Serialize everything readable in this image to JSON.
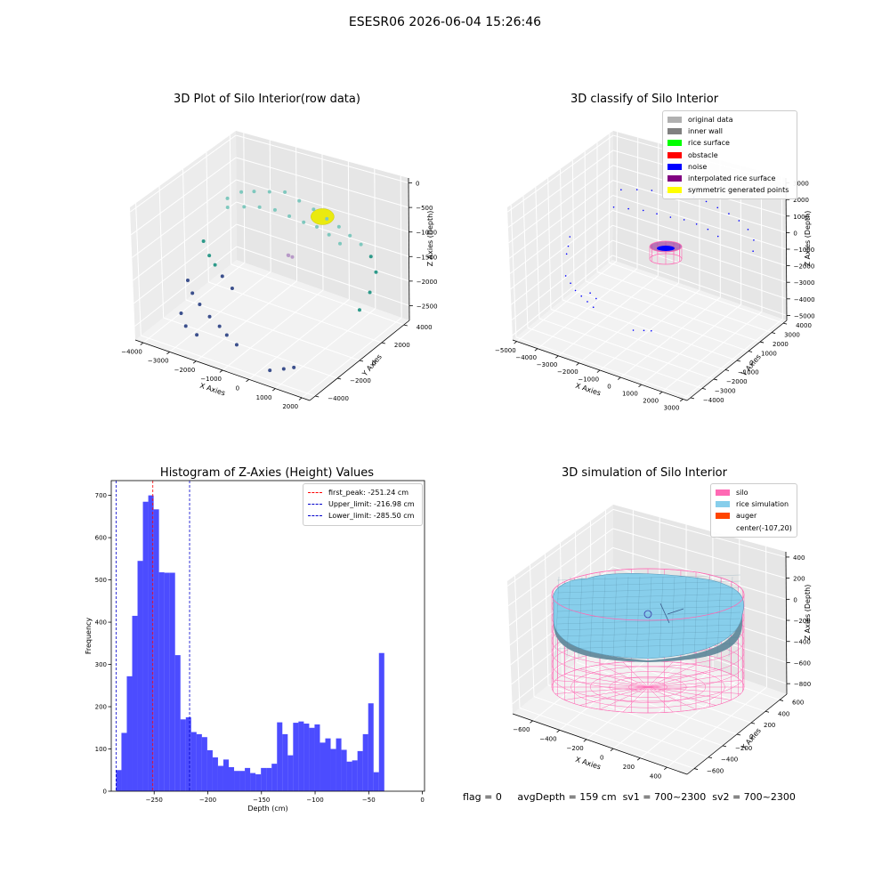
{
  "suptitle": "ESESR06 2026-06-04 15:26:46",
  "status": {
    "flag": "flag = 0",
    "avg": "avgDepth = 159 cm",
    "sv1": "sv1 = 700~2300",
    "sv2": "sv2 = 700~2300"
  },
  "chart_data": [
    {
      "type": "scatter",
      "title": "3D Plot of Silo Interior(row data)",
      "xlabel": "X Axies",
      "ylabel": "Y Axies",
      "zlabel": "Z Axies (Depth)",
      "x_ticks": [
        -4000,
        -3000,
        -2000,
        -1000,
        0,
        1000,
        2000
      ],
      "y_ticks": [
        -4000,
        -2000,
        0,
        2000,
        4000
      ],
      "z_ticks": [
        -2500,
        -2000,
        -1500,
        -1000,
        -500,
        0
      ],
      "xlim": [
        -4300,
        2300
      ],
      "ylim": [
        -4500,
        4500
      ],
      "zlim": [
        -2800,
        100
      ],
      "grid": true,
      "colors": {
        "high": "#7fc8be",
        "mid": "#2e9a8a",
        "low": "#3b4f8c",
        "feature": "#eaea10",
        "accent": "#b89ac8"
      },
      "points": [
        [
          -3600,
          2200,
          -1000
        ],
        [
          -3200,
          2500,
          -850
        ],
        [
          -2800,
          2700,
          -800
        ],
        [
          -2300,
          2900,
          -750
        ],
        [
          -1800,
          3100,
          -700
        ],
        [
          -1300,
          3200,
          -800
        ],
        [
          -800,
          3300,
          -900
        ],
        [
          -300,
          3300,
          -1000
        ],
        [
          200,
          3200,
          -1050
        ],
        [
          700,
          3000,
          -1100
        ],
        [
          1200,
          2800,
          -1150
        ],
        [
          1700,
          2500,
          -1250
        ],
        [
          2100,
          2000,
          -1400
        ],
        [
          2200,
          1200,
          -1650
        ],
        [
          2100,
          500,
          -1900
        ],
        [
          -3300,
          1500,
          -1000
        ],
        [
          -2800,
          1800,
          -950
        ],
        [
          -2300,
          2000,
          -900
        ],
        [
          -1800,
          2200,
          -900
        ],
        [
          -1300,
          2300,
          -950
        ],
        [
          -800,
          2400,
          -1000
        ],
        [
          -300,
          2400,
          -1000
        ],
        [
          200,
          2300,
          -1050
        ],
        [
          700,
          2100,
          -1100
        ],
        [
          -3800,
          500,
          -1600
        ],
        [
          -3500,
          300,
          -1800
        ],
        [
          -3200,
          100,
          -1900
        ],
        [
          -2800,
          -200,
          -2000
        ],
        [
          -2300,
          -500,
          -2100
        ],
        [
          -3900,
          -700,
          -2200
        ],
        [
          -3600,
          -1000,
          -2350
        ],
        [
          -3200,
          -1300,
          -2450
        ],
        [
          -2700,
          -1600,
          -2550
        ],
        [
          -2200,
          -1900,
          -2600
        ],
        [
          -1800,
          -2200,
          -2650
        ],
        [
          -1300,
          -2500,
          -2700
        ],
        [
          -1000,
          1500,
          -1550
        ],
        [
          -1100,
          1700,
          -1600
        ],
        [
          -900,
          1600,
          -1580
        ],
        [
          -3400,
          -2500,
          -2450
        ],
        [
          -3100,
          -2800,
          -2600
        ],
        [
          -2600,
          -3000,
          -2650
        ],
        [
          500,
          -3800,
          -2650
        ],
        [
          900,
          -3500,
          -2600
        ],
        [
          1200,
          -3300,
          -2550
        ]
      ],
      "features": [
        {
          "label": "",
          "center": [
            0,
            2200,
            -700
          ]
        }
      ]
    },
    {
      "type": "scatter",
      "title": "3D classify of Silo Interior",
      "xlabel": "X Axies",
      "ylabel": "Y Axies",
      "zlabel": "Z Axies (Depth)",
      "x_ticks": [
        -5000,
        -4000,
        -3000,
        -2000,
        -1000,
        0,
        1000,
        2000,
        3000
      ],
      "y_ticks": [
        -4000,
        -3000,
        -2000,
        -1000,
        0,
        1000,
        2000,
        3000,
        4000
      ],
      "z_ticks": [
        -5000,
        -4000,
        -3000,
        -2000,
        -1000,
        0,
        1000,
        2000,
        3000
      ],
      "xlim": [
        -5200,
        3200
      ],
      "ylim": [
        -4300,
        4300
      ],
      "zlim": [
        -5300,
        3300
      ],
      "grid": true,
      "legend": {
        "placement": "top-right",
        "entries": [
          {
            "label": "original data",
            "color": "#b0b0b0"
          },
          {
            "label": "inner wall",
            "color": "#808080"
          },
          {
            "label": "rice surface",
            "color": "#00ff00"
          },
          {
            "label": "obstacle",
            "color": "#ff0000"
          },
          {
            "label": "noise",
            "color": "#0000ff"
          },
          {
            "label": "interpolated rice surface",
            "color": "#800080"
          },
          {
            "label": "symmetric generated points",
            "color": "#ffff00"
          }
        ]
      },
      "noise_points": [
        [
          -3800,
          2600,
          500
        ],
        [
          -3200,
          2900,
          600
        ],
        [
          -2600,
          3100,
          700
        ],
        [
          -2000,
          3300,
          750
        ],
        [
          -1400,
          3400,
          800
        ],
        [
          -800,
          3500,
          850
        ],
        [
          -200,
          3500,
          850
        ],
        [
          400,
          3400,
          800
        ],
        [
          1000,
          3300,
          750
        ],
        [
          1600,
          3100,
          700
        ],
        [
          2200,
          2800,
          600
        ],
        [
          2700,
          2400,
          400
        ],
        [
          3000,
          1800,
          200
        ],
        [
          -3600,
          1600,
          100
        ],
        [
          -3000,
          1800,
          150
        ],
        [
          -2400,
          2000,
          200
        ],
        [
          -1800,
          2100,
          200
        ],
        [
          -1200,
          2200,
          200
        ],
        [
          -600,
          2300,
          250
        ],
        [
          0,
          2300,
          250
        ],
        [
          600,
          2200,
          250
        ],
        [
          1200,
          2000,
          200
        ],
        [
          -4600,
          -400,
          -1000
        ],
        [
          -4400,
          -900,
          -1200
        ],
        [
          -4200,
          -1400,
          -1300
        ],
        [
          -3800,
          -2200,
          -2000
        ],
        [
          -3400,
          -2500,
          -2100
        ],
        [
          -3000,
          -2800,
          -2200
        ],
        [
          -2600,
          -3000,
          -2250
        ],
        [
          -2200,
          -3200,
          -2300
        ],
        [
          -1800,
          -3400,
          -2350
        ],
        [
          -2400,
          -2600,
          -2200
        ],
        [
          -2000,
          -2800,
          -2250
        ],
        [
          400,
          -3900,
          -2500
        ],
        [
          800,
          -3700,
          -2450
        ],
        [
          1100,
          -3600,
          -2400
        ]
      ],
      "silo_center": [
        0,
        0,
        0
      ],
      "silo_radius": 700,
      "silo_z": [
        -1500,
        -400
      ]
    },
    {
      "type": "bar",
      "title": "Histogram of Z-Axies (Height) Values",
      "xlabel": "Depth (cm)",
      "ylabel": "Frequency",
      "xlim": [
        -290,
        2
      ],
      "ylim": [
        0,
        735
      ],
      "x_ticks": [
        -250,
        -200,
        -150,
        -100,
        -50,
        0
      ],
      "y_ticks": [
        0,
        100,
        200,
        300,
        400,
        500,
        600,
        700
      ],
      "bar_color": "#0000ff",
      "bin_start": -285.5,
      "bin_width": 5,
      "values": [
        50,
        138,
        272,
        415,
        545,
        685,
        700,
        667,
        518,
        517,
        517,
        322,
        170,
        175,
        140,
        135,
        128,
        97,
        80,
        60,
        75,
        57,
        48,
        48,
        55,
        43,
        40,
        55,
        55,
        65,
        163,
        135,
        85,
        162,
        165,
        160,
        150,
        158,
        115,
        125,
        100,
        125,
        98,
        70,
        73,
        95,
        135,
        208,
        45,
        327
      ],
      "vlines": [
        {
          "label": "first_peak: -251.24 cm",
          "x": -251.24,
          "color": "#ff0000"
        },
        {
          "label": "Upper_limit: -216.98 cm",
          "x": -216.98,
          "color": "#0000cc"
        },
        {
          "label": "Lower_limit: -285.50 cm",
          "x": -285.5,
          "color": "#0000cc"
        }
      ],
      "legend": {
        "placement": "top-right"
      }
    },
    {
      "type": "area",
      "title": "3D simulation of Silo Interior",
      "xlabel": "X Axies",
      "ylabel": "Y Axies",
      "zlabel": "Z Axies (Depth)",
      "x_ticks": [
        -600,
        -400,
        -200,
        0,
        200,
        400
      ],
      "y_ticks": [
        -600,
        -400,
        -200,
        0,
        200,
        400,
        600
      ],
      "z_ticks": [
        -800,
        -600,
        -400,
        -200,
        0,
        200,
        400
      ],
      "xlim": [
        -750,
        550
      ],
      "ylim": [
        -700,
        700
      ],
      "zlim": [
        -900,
        450
      ],
      "grid": true,
      "legend": {
        "placement": "top-right",
        "entries": [
          {
            "label": "silo",
            "color": "#ff69b4"
          },
          {
            "label": "rice simulation",
            "color": "#87ceeb"
          },
          {
            "label": "auger",
            "color": "#ff4500"
          },
          {
            "label": "center(-107,20)",
            "color": ""
          }
        ]
      },
      "silo": {
        "radius": 650,
        "z_bottom": -900,
        "z_top": 150
      },
      "rice": {
        "z_top": -60,
        "z_bottom": -430
      }
    }
  ]
}
